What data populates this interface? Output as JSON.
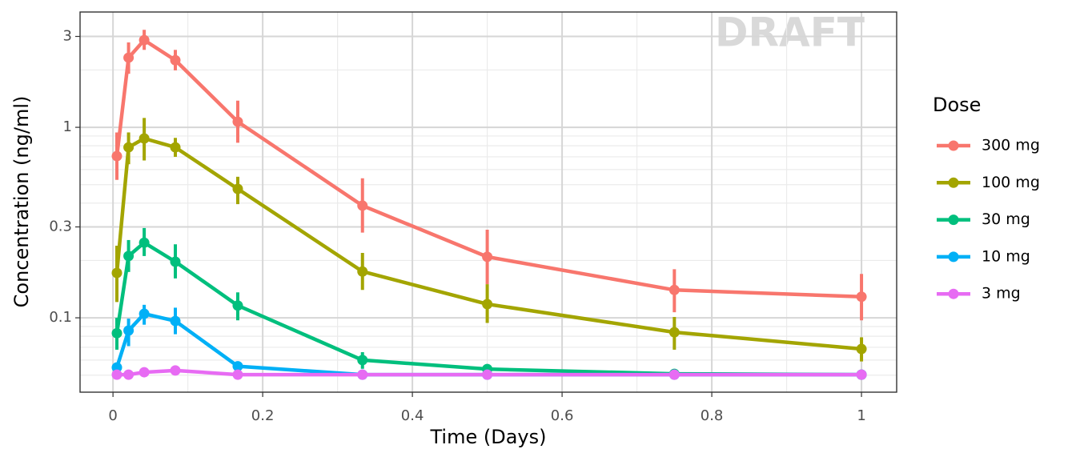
{
  "chart_data": {
    "type": "line",
    "watermark": "DRAFT",
    "x_label": "Time (Days)",
    "y_label": "Concentration (ng/ml)",
    "legend_title": "Dose",
    "x": [
      0.0052,
      0.0208,
      0.0417,
      0.0833,
      0.1667,
      0.3333,
      0.5,
      0.75,
      1
    ],
    "series": [
      {
        "name": "300 mg",
        "color": "#F8766D",
        "values": [
          0.706,
          2.32,
          2.87,
          2.25,
          1.07,
          0.388,
          0.209,
          0.14,
          0.129
        ],
        "lower": [
          0.53,
          1.91,
          2.55,
          1.99,
          0.83,
          0.28,
          0.15,
          0.107,
          0.097
        ],
        "upper": [
          0.94,
          2.79,
          3.25,
          2.55,
          1.38,
          0.54,
          0.29,
          0.18,
          0.17
        ]
      },
      {
        "name": "100 mg",
        "color": "#A3A500",
        "values": [
          0.172,
          0.785,
          0.874,
          0.785,
          0.475,
          0.175,
          0.118,
          0.084,
          0.0686
        ],
        "lower": [
          0.121,
          0.64,
          0.67,
          0.7,
          0.395,
          0.14,
          0.094,
          0.068,
          0.059
        ],
        "upper": [
          0.239,
          0.94,
          1.12,
          0.88,
          0.55,
          0.219,
          0.15,
          0.101,
          0.079
        ]
      },
      {
        "name": "30 mg",
        "color": "#00BF7D",
        "values": [
          0.083,
          0.211,
          0.248,
          0.197,
          0.116,
          0.06,
          0.0538,
          0.0508,
          0.0503
        ],
        "lower": [
          0.068,
          0.174,
          0.211,
          0.161,
          0.097,
          0.054,
          null,
          null,
          null
        ],
        "upper": [
          0.1,
          0.256,
          0.296,
          0.243,
          0.136,
          0.066,
          null,
          null,
          null
        ]
      },
      {
        "name": "10 mg",
        "color": "#00B0F6",
        "values": [
          0.0549,
          0.0857,
          0.105,
          0.0962,
          0.0557,
          0.0503,
          0.0503,
          0.0503,
          0.0503
        ],
        "lower": [
          null,
          0.071,
          0.092,
          0.082,
          null,
          null,
          null,
          null,
          null
        ],
        "upper": [
          null,
          0.099,
          0.117,
          0.113,
          null,
          null,
          null,
          null,
          null
        ]
      },
      {
        "name": "3 mg",
        "color": "#E76BF3",
        "values": [
          0.0503,
          0.0503,
          0.0518,
          0.0529,
          0.0503,
          0.0503,
          0.0503,
          0.0503,
          0.0503
        ],
        "lower": [
          null,
          null,
          null,
          null,
          null,
          null,
          null,
          null,
          null
        ],
        "upper": [
          null,
          null,
          null,
          null,
          null,
          null,
          null,
          null,
          null
        ]
      }
    ],
    "xlim": [
      -0.044,
      1.047
    ],
    "xticks": [
      0,
      0.2,
      0.4,
      0.6,
      0.8,
      1
    ],
    "xminor": [
      0.1,
      0.3,
      0.5,
      0.7,
      0.9
    ],
    "ylim": [
      0.0407,
      4.03
    ],
    "ylog": true,
    "yticks": [
      0.1,
      0.3,
      1,
      3
    ],
    "yminor": [
      0.05,
      0.06,
      0.07,
      0.08,
      0.09,
      0.2,
      0.4,
      0.5,
      0.6,
      0.7,
      0.8,
      0.9,
      2
    ],
    "grid": true
  }
}
